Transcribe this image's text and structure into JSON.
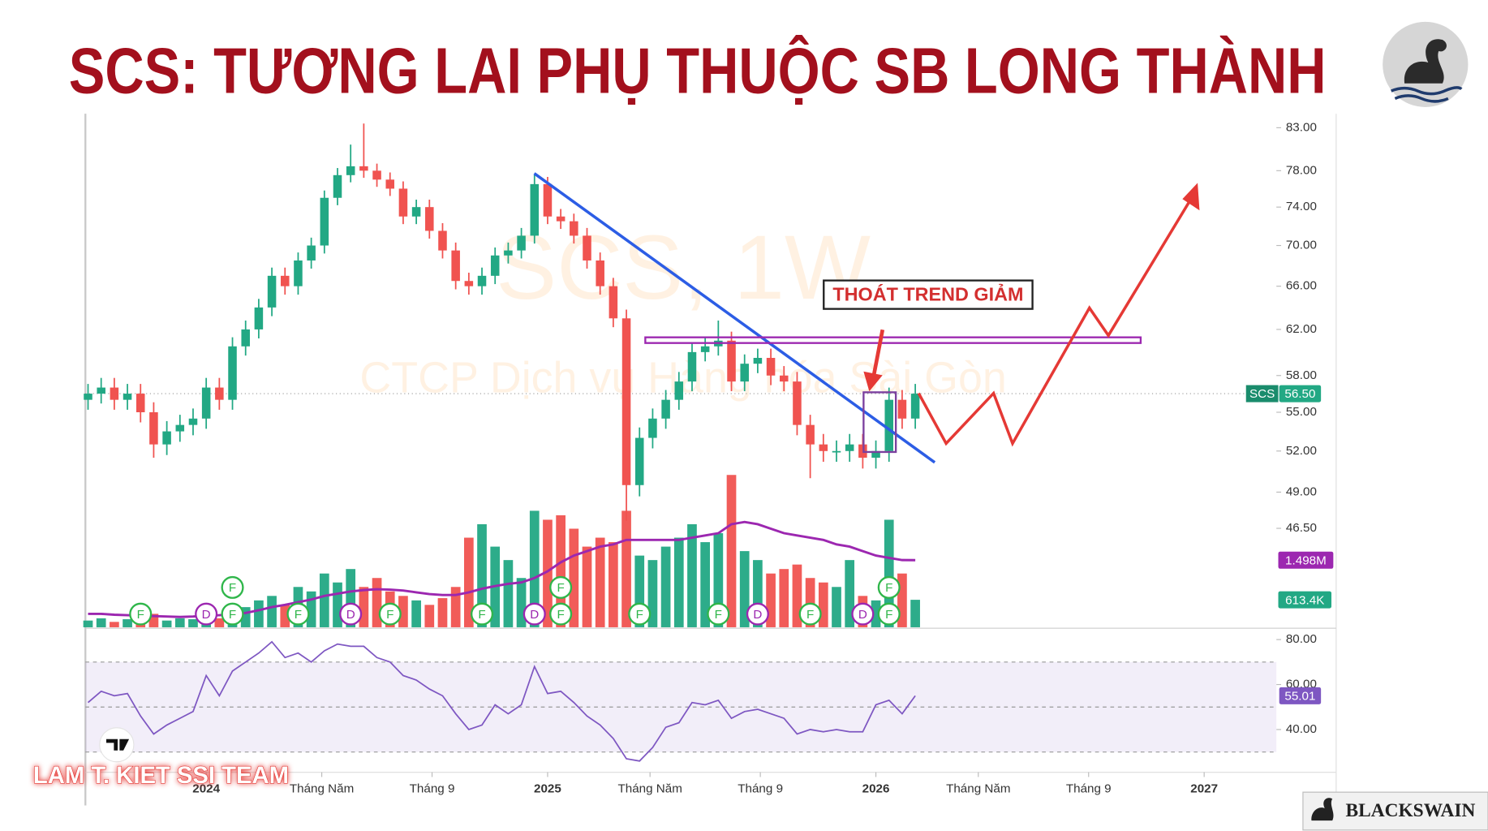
{
  "chart_data": {
    "type": "candlestick",
    "title": "SCS: TƯƠNG LAI PHỤ THUỘC SB LONG THÀNH",
    "watermark": "SCS, 1W",
    "watermark_subtitle": "CTCP Dịch vụ Hàng hóa Sài Gòn",
    "symbol": "SCS",
    "annotation": "THOÁT TREND GIẢM",
    "author": "LAM T. KIET SSI TEAM",
    "brand": "BLACKSWAIN",
    "up_color": "#22a884",
    "down_color": "#f05350",
    "open": [
      56,
      56.5,
      57,
      56,
      56.5,
      55,
      52.5,
      53.5,
      54,
      54.5,
      57,
      56,
      60.5,
      62,
      64,
      67,
      66,
      68.5,
      70,
      75,
      77.5,
      78.5,
      78,
      77,
      76,
      73,
      74,
      71.5,
      69.5,
      66.5,
      66,
      67,
      69,
      69.5,
      71,
      76.5,
      73,
      72.5,
      71,
      68.5,
      66,
      63,
      49.5,
      53,
      54.5,
      56,
      57.5,
      60,
      60.5,
      61,
      57.5,
      59,
      59.5,
      58,
      57.5,
      54,
      52.5,
      52,
      52,
      52.5,
      51.5,
      52,
      56,
      54.5
    ],
    "high": [
      57.3,
      57.8,
      57.8,
      57.3,
      57.3,
      55.8,
      54.3,
      54.8,
      55.3,
      57.8,
      57.8,
      61.3,
      62.8,
      64.8,
      67.8,
      67.8,
      69.3,
      70.8,
      75.8,
      78.3,
      81,
      83.5,
      78.8,
      77.8,
      76.8,
      74.8,
      74.8,
      72.3,
      70.3,
      67.3,
      67.8,
      69.8,
      70.3,
      71.8,
      77.5,
      77.3,
      73.8,
      73.3,
      71.8,
      69.3,
      66.8,
      63.8,
      53.8,
      55.3,
      56.8,
      58.3,
      60.8,
      61.3,
      62.8,
      61.8,
      59.8,
      60.3,
      60.3,
      58.8,
      58.3,
      54.8,
      53.3,
      52.8,
      53.3,
      53.3,
      52.8,
      57,
      56.8,
      57.3
    ],
    "low": [
      55.2,
      55.7,
      55.2,
      55.2,
      54.2,
      51.5,
      51.7,
      52.7,
      53.2,
      53.7,
      55.2,
      55.2,
      59.7,
      61.2,
      63.2,
      65.2,
      65.2,
      67.7,
      69.2,
      74.2,
      76.7,
      77.2,
      76.2,
      75.2,
      72.2,
      72.2,
      70.7,
      68.7,
      65.7,
      65.2,
      65.2,
      66.2,
      68.2,
      68.7,
      70.2,
      72.2,
      71.7,
      70.2,
      67.7,
      65.2,
      62.2,
      47,
      48.7,
      52.2,
      53.7,
      55.2,
      56.7,
      59.2,
      59.7,
      56.7,
      56.7,
      58.2,
      57.2,
      56.7,
      53.2,
      50,
      51.2,
      51.2,
      51.2,
      50.7,
      50.7,
      51.2,
      53.7,
      53.7
    ],
    "close": [
      56.5,
      57,
      56,
      56.5,
      55,
      52.5,
      53.5,
      54,
      54.5,
      57,
      56,
      60.5,
      62,
      64,
      67,
      66,
      68.5,
      70,
      75,
      77.5,
      78.5,
      78,
      77,
      76,
      73,
      74,
      71.5,
      69.5,
      66.5,
      66,
      67,
      69,
      69.5,
      71,
      76.5,
      73,
      72.5,
      71,
      68.5,
      66,
      63,
      49.5,
      53,
      54.5,
      56,
      57.5,
      60,
      60.5,
      61,
      57.5,
      59,
      59.5,
      58,
      57.5,
      54,
      52.5,
      52,
      52,
      52.5,
      51.5,
      52,
      56,
      54.5,
      56.5
    ],
    "xlim": [
      -0.2,
      90.5
    ],
    "xticks": [
      {
        "value": 9.0,
        "label": "2024"
      },
      {
        "value": 17.8,
        "label": "Tháng Năm"
      },
      {
        "value": 26.2,
        "label": "Tháng 9"
      },
      {
        "value": 35.0,
        "label": "2025"
      },
      {
        "value": 42.8,
        "label": "Tháng Năm"
      },
      {
        "value": 51.2,
        "label": "Tháng 9"
      },
      {
        "value": 60.0,
        "label": "2026"
      },
      {
        "value": 67.8,
        "label": "Tháng Năm"
      },
      {
        "value": 76.2,
        "label": "Tháng 9"
      },
      {
        "value": 85.0,
        "label": "2027"
      }
    ],
    "ylim": [
      40.3,
      84.7
    ],
    "log_y": true,
    "yticks": [
      {
        "value": 83,
        "label": "83.00"
      },
      {
        "value": 78,
        "label": "78.00"
      },
      {
        "value": 74,
        "label": "74.00"
      },
      {
        "value": 70,
        "label": "70.00"
      },
      {
        "value": 66,
        "label": "66.00"
      },
      {
        "value": 62,
        "label": "62.00"
      },
      {
        "value": 58,
        "label": "58.00"
      },
      {
        "value": 55,
        "label": "55.00"
      },
      {
        "value": 52,
        "label": "52.00"
      },
      {
        "value": 49,
        "label": "49.00"
      },
      {
        "value": 46.5,
        "label": "46.50"
      }
    ],
    "last_price": {
      "value": 56.5,
      "label": "56.50"
    },
    "volume": {
      "lim": [
        0,
        7000000
      ],
      "values": [
        150000,
        200000,
        120000,
        180000,
        250000,
        300000,
        150000,
        200000,
        180000,
        350000,
        200000,
        400000,
        450000,
        600000,
        700000,
        500000,
        900000,
        800000,
        1200000,
        1000000,
        1300000,
        900000,
        1100000,
        800000,
        700000,
        600000,
        500000,
        650000,
        900000,
        2000000,
        2300000,
        1800000,
        1500000,
        1100000,
        2600000,
        2400000,
        2500000,
        2200000,
        1800000,
        2000000,
        1900000,
        2600000,
        1600000,
        1500000,
        1800000,
        2000000,
        2300000,
        1900000,
        2100000,
        3400000,
        1700000,
        1500000,
        1200000,
        1300000,
        1400000,
        1100000,
        1000000,
        900000,
        1500000,
        700000,
        600000,
        2400000,
        1200000,
        613400
      ],
      "last": {
        "value": 613400,
        "label": "613.4K"
      }
    },
    "volume_ma": {
      "color": "#9c27b0",
      "values": [
        300000,
        300000,
        280000,
        270000,
        260000,
        250000,
        240000,
        230000,
        240000,
        260000,
        270000,
        290000,
        320000,
        380000,
        450000,
        500000,
        560000,
        620000,
        700000,
        750000,
        800000,
        830000,
        850000,
        840000,
        820000,
        780000,
        740000,
        720000,
        720000,
        780000,
        860000,
        920000,
        970000,
        1000000,
        1100000,
        1250000,
        1450000,
        1600000,
        1700000,
        1800000,
        1850000,
        1950000,
        1950000,
        1950000,
        1950000,
        1950000,
        2000000,
        2050000,
        2100000,
        2300000,
        2350000,
        2300000,
        2200000,
        2100000,
        2050000,
        2000000,
        1950000,
        1850000,
        1800000,
        1700000,
        1600000,
        1550000,
        1500000,
        1498000
      ],
      "last": {
        "value": 1498000,
        "label": "1.498M"
      }
    },
    "rsi": {
      "color": "#7e57c2",
      "lim": [
        21,
        84.2
      ],
      "ticks": [
        {
          "value": 80,
          "label": "80.00"
        },
        {
          "value": 60,
          "label": "60.00"
        },
        {
          "value": 40,
          "label": "40.00"
        }
      ],
      "levels": [
        30,
        50,
        70
      ],
      "values": [
        52,
        57,
        55,
        56,
        46,
        38,
        42,
        45,
        48,
        64,
        55,
        66,
        70,
        74,
        79,
        72,
        74,
        70,
        75,
        78,
        77,
        77,
        72,
        70,
        64,
        62,
        58,
        55,
        47,
        40,
        42,
        51,
        47,
        51,
        68,
        56,
        57,
        52,
        46,
        42,
        36,
        27,
        26,
        32,
        41,
        43,
        52,
        51,
        53,
        45,
        48,
        49,
        47,
        45,
        38,
        40,
        39,
        40,
        39,
        39,
        51,
        53,
        47,
        55.01
      ],
      "last": {
        "value": 55.01,
        "label": "55.01"
      }
    },
    "events": [
      {
        "index": 4,
        "label": "F"
      },
      {
        "index": 9,
        "label": "D"
      },
      {
        "index": 11,
        "label": "F"
      },
      {
        "index": 11,
        "label": "F"
      },
      {
        "index": 16,
        "label": "F"
      },
      {
        "index": 20,
        "label": "D"
      },
      {
        "index": 23,
        "label": "F"
      },
      {
        "index": 30,
        "label": "F"
      },
      {
        "index": 34,
        "label": "D"
      },
      {
        "index": 36,
        "label": "F"
      },
      {
        "index": 36,
        "label": "F"
      },
      {
        "index": 42,
        "label": "F"
      },
      {
        "index": 48,
        "label": "F"
      },
      {
        "index": 51,
        "label": "D"
      },
      {
        "index": 55,
        "label": "F"
      },
      {
        "index": 59,
        "label": "D"
      },
      {
        "index": 61,
        "label": "F"
      },
      {
        "index": 61,
        "label": "F"
      }
    ]
  }
}
